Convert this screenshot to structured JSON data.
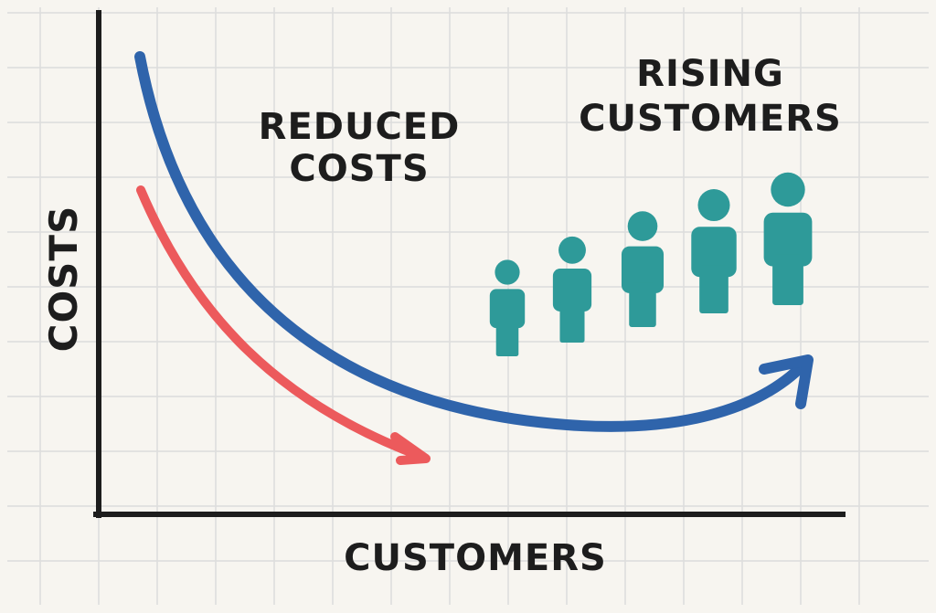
{
  "labels": {
    "y_axis": "COSTS",
    "x_axis": "CUSTOMERS",
    "reduced_costs": [
      "REDUCED",
      "COSTS"
    ],
    "rising_customers": [
      "RISING",
      "CUSTOMERS"
    ]
  },
  "people_count": 5,
  "colors": {
    "background": "#f7f5f0",
    "grid": "#dcdcdc",
    "axis": "#1d1d1d",
    "blue_curve": "#2f64ab",
    "red_arrow": "#ec5a5c",
    "people": "#2e9a99",
    "text": "#1d1d1d"
  },
  "icons": {
    "people": "person-icon",
    "arrowheads": "arrowhead-icon"
  }
}
